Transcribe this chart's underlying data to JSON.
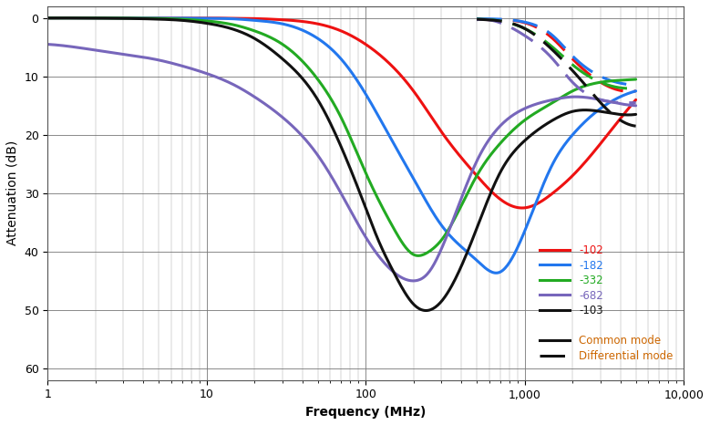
{
  "xlabel": "Frequency (MHz)",
  "ylabel": "Attenuation (dB)",
  "xlim": [
    1,
    10000
  ],
  "ylim": [
    62,
    -2
  ],
  "yticks": [
    0,
    10,
    20,
    30,
    40,
    50,
    60
  ],
  "series": [
    {
      "label": "-102",
      "color": "#ee1111",
      "common_mode": {
        "freq": [
          1,
          1.5,
          2,
          3,
          5,
          7,
          10,
          15,
          20,
          30,
          50,
          70,
          100,
          150,
          200,
          300,
          500,
          700,
          1000,
          1500,
          2000,
          3000,
          5000
        ],
        "atten": [
          0.0,
          0.0,
          0.0,
          0.0,
          0.0,
          0.0,
          0.0,
          0.05,
          0.1,
          0.3,
          1.0,
          2.2,
          4.5,
          8.5,
          12.5,
          19.5,
          27.0,
          31.0,
          32.5,
          30.0,
          27.0,
          21.5,
          14.0
        ]
      },
      "diff_mode": {
        "freq": [
          500,
          700,
          1000,
          1500,
          2000,
          3000,
          5000
        ],
        "atten": [
          0.2,
          0.3,
          0.8,
          3.5,
          7.0,
          11.0,
          12.5
        ]
      }
    },
    {
      "label": "-182",
      "color": "#2277ee",
      "common_mode": {
        "freq": [
          1,
          1.5,
          2,
          3,
          5,
          7,
          10,
          15,
          20,
          30,
          50,
          70,
          100,
          150,
          200,
          300,
          500,
          700,
          1000,
          1500,
          2000,
          3000,
          5000
        ],
        "atten": [
          0.0,
          0.0,
          0.0,
          0.0,
          0.0,
          0.02,
          0.05,
          0.15,
          0.4,
          1.0,
          3.5,
          7.0,
          13.0,
          21.5,
          27.5,
          35.5,
          41.5,
          43.5,
          36.5,
          25.0,
          20.0,
          15.5,
          12.5
        ]
      },
      "diff_mode": {
        "freq": [
          500,
          700,
          1000,
          1500,
          2000,
          3000,
          5000
        ],
        "atten": [
          0.1,
          0.2,
          0.7,
          3.0,
          6.5,
          10.0,
          11.5
        ]
      }
    },
    {
      "label": "-332",
      "color": "#22aa22",
      "common_mode": {
        "freq": [
          1,
          1.5,
          2,
          3,
          5,
          7,
          10,
          15,
          20,
          30,
          50,
          70,
          100,
          150,
          200,
          250,
          300,
          500,
          700,
          1000,
          1500,
          2000,
          3000,
          5000
        ],
        "atten": [
          0.0,
          0.0,
          0.0,
          0.02,
          0.08,
          0.2,
          0.5,
          1.2,
          2.2,
          4.5,
          10.5,
          17.0,
          26.5,
          36.0,
          40.5,
          40.0,
          38.0,
          27.0,
          21.5,
          17.5,
          14.5,
          12.5,
          11.0,
          10.5
        ]
      },
      "diff_mode": {
        "freq": [
          500,
          700,
          1000,
          1500,
          2000,
          3000,
          5000
        ],
        "atten": [
          0.2,
          0.5,
          1.8,
          5.0,
          8.0,
          11.0,
          12.0
        ]
      }
    },
    {
      "label": "-682",
      "color": "#7766bb",
      "common_mode": {
        "freq": [
          1,
          1.5,
          2,
          3,
          5,
          7,
          10,
          15,
          20,
          30,
          50,
          70,
          100,
          150,
          200,
          250,
          300,
          500,
          700,
          1000,
          1500,
          2000,
          3000,
          5000
        ],
        "atten": [
          4.5,
          5.0,
          5.5,
          6.2,
          7.2,
          8.2,
          9.5,
          11.5,
          13.5,
          17.0,
          23.5,
          30.0,
          37.5,
          43.5,
          45.0,
          43.5,
          39.5,
          24.5,
          18.5,
          15.5,
          14.0,
          13.5,
          14.0,
          15.0
        ]
      },
      "diff_mode": {
        "freq": [
          500,
          700,
          1000,
          1500,
          2000,
          3000,
          5000
        ],
        "atten": [
          0.3,
          0.8,
          3.0,
          7.0,
          11.0,
          14.0,
          14.5
        ]
      }
    },
    {
      "label": "-103",
      "color": "#111111",
      "common_mode": {
        "freq": [
          1,
          1.5,
          2,
          3,
          5,
          7,
          10,
          15,
          20,
          30,
          50,
          70,
          100,
          120,
          150,
          200,
          300,
          500,
          700,
          1000,
          1500,
          2000,
          3000,
          5000
        ],
        "atten": [
          0.0,
          0.0,
          0.02,
          0.06,
          0.2,
          0.4,
          0.9,
          2.0,
          3.5,
          7.0,
          14.0,
          22.0,
          32.5,
          38.0,
          43.5,
          49.0,
          48.5,
          36.0,
          26.5,
          21.0,
          17.5,
          16.0,
          16.0,
          16.5
        ]
      },
      "diff_mode": {
        "freq": [
          500,
          700,
          1000,
          1500,
          2000,
          2500,
          3000,
          4000,
          5000
        ],
        "atten": [
          0.2,
          0.5,
          1.8,
          5.5,
          9.0,
          12.0,
          14.5,
          17.5,
          18.5
        ]
      }
    }
  ],
  "legend_labels": [
    "-102",
    "-182",
    "-332",
    "-682",
    "-103"
  ],
  "legend_colors": [
    "#ee1111",
    "#2277ee",
    "#22aa22",
    "#7766bb",
    "#111111"
  ],
  "legend_text_colors": [
    "#ee1111",
    "#2277ee",
    "#22aa22",
    "#7766bb",
    "#111111"
  ],
  "mode_label_color": "#cc6600",
  "background_color": "#ffffff"
}
